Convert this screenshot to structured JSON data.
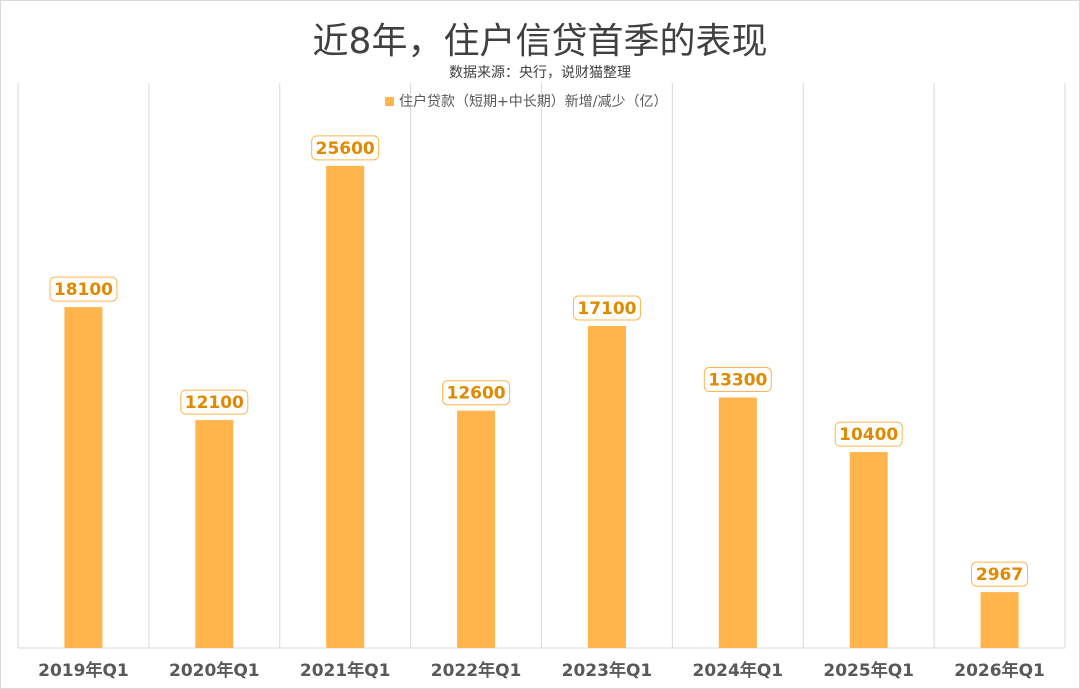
{
  "chart_data": {
    "type": "bar",
    "title": "近8年，住户信贷首季的表现",
    "subtitle": "数据来源：央行，说财猫整理",
    "legend_position": "top-center",
    "grid": "vertical-only",
    "categories": [
      "2019年Q1",
      "2020年Q1",
      "2021年Q1",
      "2022年Q1",
      "2023年Q1",
      "2024年Q1",
      "2025年Q1",
      "2026年Q1"
    ],
    "series": [
      {
        "name": "住户贷款（短期+中长期）新增/减少（亿）",
        "values": [
          18100,
          12100,
          25600,
          12600,
          17100,
          13300,
          10400,
          2967
        ]
      }
    ],
    "ylim": [
      0,
      30000
    ],
    "data_labels": [
      "18100",
      "12100",
      "25600",
      "12600",
      "17100",
      "13300",
      "10400",
      "2967"
    ],
    "colors": {
      "bar": "#FFB54C",
      "label_border": "#FFB54C",
      "label_text": "#E08A00",
      "grid": "#d9d9d9",
      "title": "#404040",
      "axis_text": "#595959"
    }
  }
}
